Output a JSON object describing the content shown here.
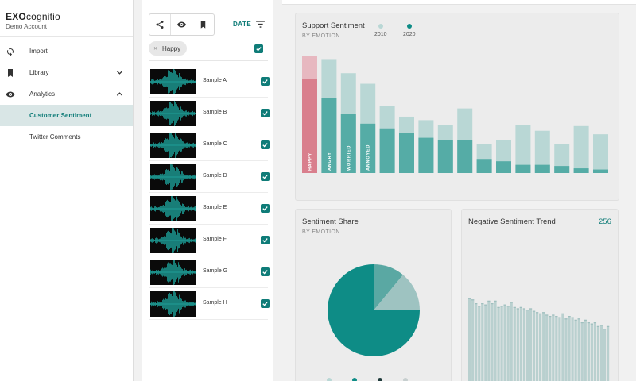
{
  "app": {
    "brand_bold": "EXO",
    "brand_light": "cognitio",
    "account": "Demo Account"
  },
  "sidebar": {
    "items": [
      {
        "label": "Import",
        "icon": "sync-icon"
      },
      {
        "label": "Library",
        "icon": "bookmark-icon",
        "chevron": "down"
      },
      {
        "label": "Analytics",
        "icon": "eye-icon",
        "chevron": "up"
      },
      {
        "label": "Customer Sentiment",
        "active": true
      },
      {
        "label": "Twitter Comments"
      }
    ]
  },
  "list": {
    "sort_label": "DATE",
    "filter_chip": "Happy",
    "samples": [
      {
        "name": "Sample A",
        "checked": true
      },
      {
        "name": "Sample B",
        "checked": true
      },
      {
        "name": "Sample C",
        "checked": true
      },
      {
        "name": "Sample D",
        "checked": true
      },
      {
        "name": "Sample E",
        "checked": true
      },
      {
        "name": "Sample F",
        "checked": true
      },
      {
        "name": "Sample G",
        "checked": true
      },
      {
        "name": "Sample H",
        "checked": true
      }
    ]
  },
  "support_card": {
    "title": "Support Sentiment",
    "subtitle": "BY EMOTION",
    "more": "···"
  },
  "share_card": {
    "title": "Sentiment Share",
    "subtitle": "BY EMOTION",
    "more": "···"
  },
  "trend_card": {
    "title": "Negative Sentiment Trend",
    "count": "256"
  },
  "colors": {
    "accent": "#0f7c78",
    "teal_dark": "#0e8c86",
    "teal_mid": "#55aca6",
    "teal_light": "#b9d7d5",
    "pink_dark": "#d97f8d",
    "pink_light": "#e7b8c0"
  },
  "chart_data": [
    {
      "type": "bar",
      "title": "Support Sentiment",
      "subtitle": "BY EMOTION",
      "categories": [
        "HAPPY",
        "ANGRY",
        "WORRIED",
        "ANNOYED",
        "",
        "",
        "",
        "",
        "",
        "",
        "",
        "",
        "",
        "",
        "",
        ""
      ],
      "series": [
        {
          "name": "2010",
          "values": [
            100,
            97,
            85,
            76,
            57,
            48,
            45,
            41,
            55,
            25,
            28,
            41,
            36,
            25,
            40,
            33
          ]
        },
        {
          "name": "2020",
          "values": [
            80,
            64,
            50,
            42,
            38,
            34,
            30,
            28,
            28,
            12,
            10,
            7,
            7,
            6,
            4,
            3
          ]
        }
      ],
      "ylim": [
        0,
        100
      ],
      "legend": "top"
    },
    {
      "type": "pie",
      "title": "Sentiment Share",
      "subtitle": "BY EMOTION",
      "values": [
        75,
        11,
        14
      ],
      "colors": [
        "#0e8c86",
        "#5aa8a3",
        "#9ec3c1"
      ],
      "legend_dots": [
        "#b9d7d5",
        "#0e8c86",
        "#1f3b3b",
        "#c7cfcf"
      ]
    },
    {
      "type": "bar",
      "title": "Negative Sentiment Trend",
      "values": [
        74,
        73,
        70,
        68,
        70,
        69,
        72,
        70,
        72,
        67,
        68,
        69,
        68,
        71,
        67,
        66,
        67,
        66,
        65,
        66,
        64,
        63,
        62,
        63,
        61,
        60,
        61,
        60,
        59,
        62,
        58,
        60,
        59,
        57,
        58,
        55,
        57,
        55,
        54,
        55,
        52,
        53,
        50,
        52
      ],
      "ylim": [
        0,
        100
      ]
    }
  ]
}
